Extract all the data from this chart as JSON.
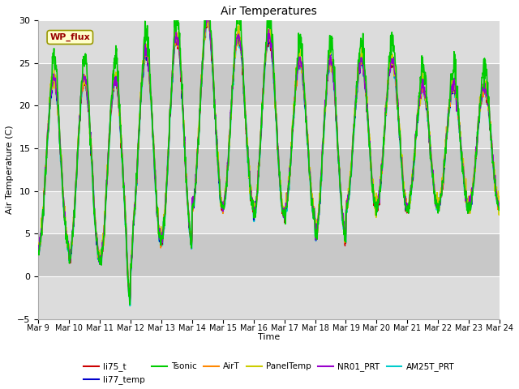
{
  "title": "Air Temperatures",
  "ylabel": "Air Temperature (C)",
  "xlabel": "Time",
  "ylim": [
    -5,
    30
  ],
  "yticks": [
    -5,
    0,
    5,
    10,
    15,
    20,
    25,
    30
  ],
  "xtick_labels": [
    "Mar 9",
    "Mar 10",
    "Mar 11",
    "Mar 12",
    "Mar 13",
    "Mar 14",
    "Mar 15",
    "Mar 16",
    "Mar 17",
    "Mar 18",
    "Mar 19",
    "Mar 20",
    "Mar 21",
    "Mar 22",
    "Mar 23",
    "Mar 24"
  ],
  "series": [
    {
      "label": "li75_t",
      "color": "#cc0000",
      "lw": 1.0,
      "zorder": 5
    },
    {
      "label": "li77_temp",
      "color": "#0000cc",
      "lw": 1.0,
      "zorder": 5
    },
    {
      "label": "Tsonic",
      "color": "#00cc00",
      "lw": 1.2,
      "zorder": 6
    },
    {
      "label": "AirT",
      "color": "#ff8800",
      "lw": 1.0,
      "zorder": 5
    },
    {
      "label": "PanelTemp",
      "color": "#cccc00",
      "lw": 1.0,
      "zorder": 5
    },
    {
      "label": "NR01_PRT",
      "color": "#9900cc",
      "lw": 1.0,
      "zorder": 5
    },
    {
      "label": "AM25T_PRT",
      "color": "#00cccc",
      "lw": 1.5,
      "zorder": 3
    }
  ],
  "plot_bg": "#e8e8e8",
  "band_light": "#dcdcdc",
  "band_dark": "#c8c8c8",
  "annotation_text": "WP_flux",
  "annotation_color": "#990000",
  "annotation_bg": "#ffffcc",
  "annotation_border": "#999900",
  "n_days": 15,
  "pts_per_day": 96
}
